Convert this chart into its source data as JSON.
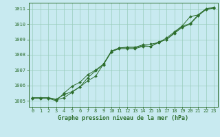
{
  "title": "Graphe pression niveau de la mer (hPa)",
  "bg_color": "#c8eaf0",
  "grid_color": "#99ccbb",
  "line_color": "#2d6e2d",
  "marker_color": "#2d6e2d",
  "xlim": [
    -0.5,
    23.5
  ],
  "ylim": [
    1004.6,
    1011.4
  ],
  "yticks": [
    1005,
    1006,
    1007,
    1008,
    1009,
    1010,
    1011
  ],
  "xticks": [
    0,
    1,
    2,
    3,
    4,
    5,
    6,
    7,
    8,
    9,
    10,
    11,
    12,
    13,
    14,
    15,
    16,
    17,
    18,
    19,
    20,
    21,
    22,
    23
  ],
  "line1_x": [
    0,
    1,
    2,
    3,
    4,
    5,
    6,
    7,
    8,
    9,
    10,
    11,
    12,
    13,
    14,
    15,
    16,
    17,
    18,
    19,
    20,
    21,
    22,
    23
  ],
  "line1_y": [
    1005.2,
    1005.2,
    1005.2,
    1005.1,
    1005.4,
    1005.6,
    1005.9,
    1006.3,
    1006.6,
    1007.4,
    1008.25,
    1008.45,
    1008.5,
    1008.5,
    1008.65,
    1008.7,
    1008.8,
    1009.1,
    1009.5,
    1009.9,
    1010.5,
    1010.6,
    1011.0,
    1011.1
  ],
  "line2_x": [
    0,
    1,
    2,
    3,
    4,
    5,
    6,
    7,
    8,
    9,
    10,
    11,
    12,
    13,
    14,
    15,
    16,
    17,
    18,
    19,
    20,
    21,
    22,
    23
  ],
  "line2_y": [
    1005.2,
    1005.2,
    1005.2,
    1005.05,
    1005.2,
    1005.55,
    1005.9,
    1006.5,
    1006.95,
    1007.35,
    1008.2,
    1008.45,
    1008.45,
    1008.45,
    1008.6,
    1008.55,
    1008.85,
    1009.0,
    1009.45,
    1009.85,
    1010.05,
    1010.6,
    1011.0,
    1011.1
  ],
  "line3_x": [
    0,
    1,
    2,
    3,
    4,
    5,
    6,
    7,
    8,
    9,
    10,
    11,
    12,
    13,
    14,
    15,
    16,
    17,
    18,
    19,
    20,
    21,
    22,
    23
  ],
  "line3_y": [
    1005.15,
    1005.15,
    1005.15,
    1005.0,
    1005.5,
    1005.95,
    1006.2,
    1006.7,
    1007.0,
    1007.4,
    1008.2,
    1008.4,
    1008.4,
    1008.4,
    1008.55,
    1008.55,
    1008.8,
    1009.0,
    1009.4,
    1009.8,
    1010.0,
    1010.55,
    1010.95,
    1011.05
  ],
  "tick_fontsize": 5,
  "xlabel_fontsize": 6,
  "lw": 0.7,
  "ms": 2.0
}
